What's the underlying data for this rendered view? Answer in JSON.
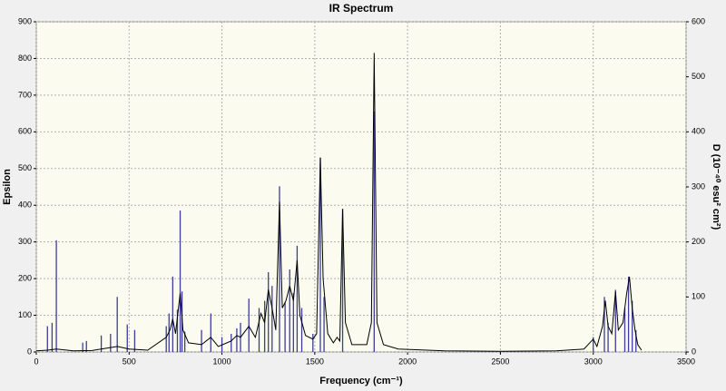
{
  "chart_data": {
    "type": "line",
    "title": "IR Spectrum",
    "x_label": "Frequency (cm⁻¹)",
    "y_label": "Epsilon",
    "y2_label": "D (10⁻⁴⁰ esu² cm²)",
    "xlim": [
      0,
      3500
    ],
    "xticks": [
      0,
      500,
      1000,
      1500,
      2000,
      2500,
      3000,
      3500
    ],
    "ylim": [
      0,
      900
    ],
    "yticks": [
      0,
      100,
      200,
      300,
      400,
      500,
      600,
      700,
      800,
      900
    ],
    "y2lim": [
      0,
      600
    ],
    "y2ticks": [
      0,
      100,
      200,
      300,
      400,
      500,
      600
    ],
    "grid": true,
    "series": [
      {
        "type": "stem",
        "axis": "y2",
        "color": "#3c3c9c",
        "x": [
          60,
          85,
          108,
          250,
          270,
          350,
          400,
          436,
          490,
          530,
          700,
          715,
          735,
          760,
          775,
          785,
          800,
          890,
          940,
          1000,
          1050,
          1080,
          1100,
          1145,
          1200,
          1230,
          1250,
          1270,
          1310,
          1340,
          1365,
          1385,
          1405,
          1430,
          1490,
          1530,
          1550,
          1650,
          1820,
          3000,
          3060,
          3080,
          3120,
          3170,
          3190,
          3210,
          3230
        ],
        "values": [
          47,
          53,
          203,
          17,
          20,
          30,
          33,
          100,
          50,
          40,
          47,
          70,
          137,
          77,
          257,
          110,
          37,
          40,
          70,
          27,
          33,
          43,
          53,
          97,
          80,
          93,
          145,
          120,
          301,
          90,
          150,
          107,
          193,
          80,
          33,
          353,
          100,
          260,
          437,
          27,
          100,
          53,
          113,
          80,
          137,
          93,
          40
        ]
      },
      {
        "type": "line",
        "color": "#000000",
        "x": [
          0,
          60,
          108,
          200,
          300,
          436,
          500,
          600,
          700,
          720,
          735,
          750,
          775,
          790,
          820,
          890,
          940,
          980,
          1050,
          1080,
          1100,
          1145,
          1180,
          1210,
          1230,
          1250,
          1270,
          1290,
          1310,
          1325,
          1345,
          1365,
          1385,
          1405,
          1420,
          1450,
          1490,
          1510,
          1530,
          1545,
          1570,
          1600,
          1620,
          1635,
          1650,
          1665,
          1700,
          1780,
          1805,
          1820,
          1835,
          1870,
          1950,
          2200,
          2500,
          2800,
          2950,
          3000,
          3020,
          3050,
          3065,
          3080,
          3100,
          3120,
          3135,
          3160,
          3180,
          3195,
          3210,
          3225,
          3240,
          3260
        ],
        "values": [
          3,
          5,
          8,
          3,
          4,
          15,
          8,
          5,
          40,
          60,
          90,
          50,
          160,
          60,
          25,
          20,
          40,
          15,
          30,
          45,
          40,
          70,
          40,
          105,
          80,
          170,
          120,
          60,
          410,
          120,
          140,
          180,
          140,
          250,
          100,
          45,
          35,
          50,
          530,
          200,
          50,
          25,
          40,
          30,
          390,
          80,
          20,
          20,
          80,
          815,
          80,
          20,
          8,
          3,
          2,
          3,
          8,
          35,
          15,
          70,
          140,
          70,
          50,
          165,
          60,
          80,
          160,
          205,
          120,
          60,
          20,
          5
        ]
      }
    ]
  }
}
